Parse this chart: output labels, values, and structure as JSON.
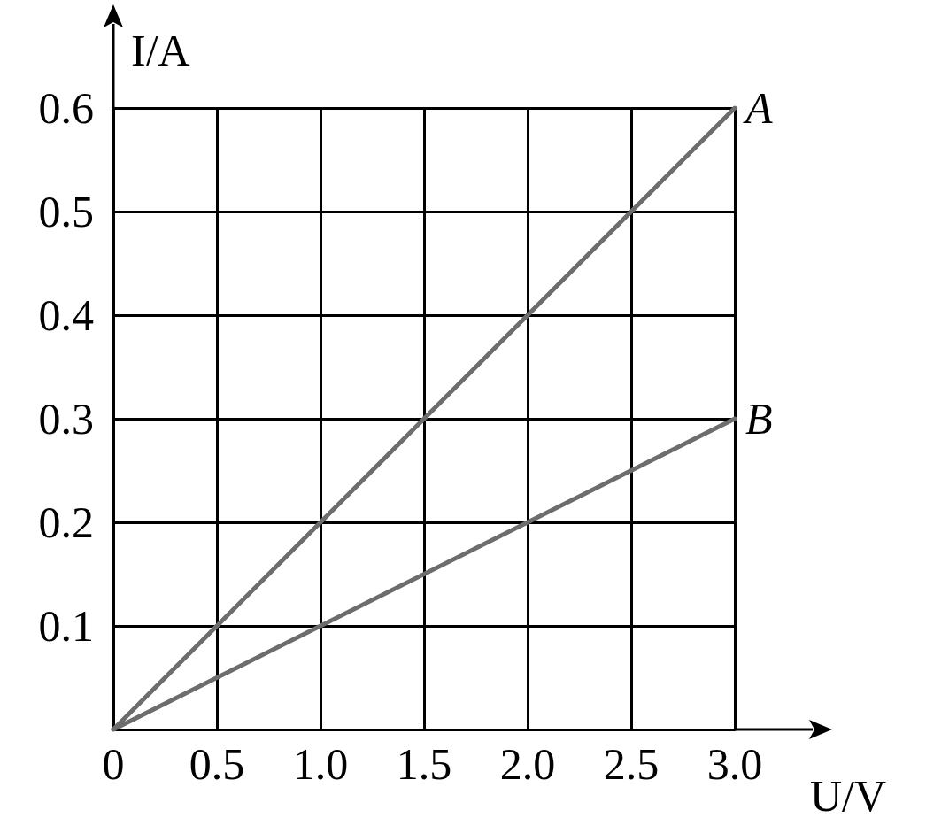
{
  "chart_data": {
    "type": "line",
    "xlabel": "U/V",
    "ylabel": "I/A",
    "x": [
      0,
      3
    ],
    "series": [
      {
        "name": "A",
        "color": "#6d6d6d",
        "values": [
          0,
          0.6
        ]
      },
      {
        "name": "B",
        "color": "#6d6d6d",
        "values": [
          0,
          0.3
        ]
      }
    ],
    "xlim": [
      0,
      3
    ],
    "ylim": [
      0,
      0.6
    ],
    "xticks": [
      0,
      0.5,
      {
        "value": 1,
        "label": "1.0"
      },
      1.5,
      {
        "value": 2,
        "label": "2.0"
      },
      2.5,
      {
        "value": 3,
        "label": "3.0"
      }
    ],
    "yticks": [
      {
        "value": 0,
        "label": null
      },
      0.1,
      0.2,
      0.3,
      0.4,
      0.5,
      0.6
    ],
    "grid": true,
    "legend": false,
    "marker": "none",
    "line_style": "solid"
  }
}
